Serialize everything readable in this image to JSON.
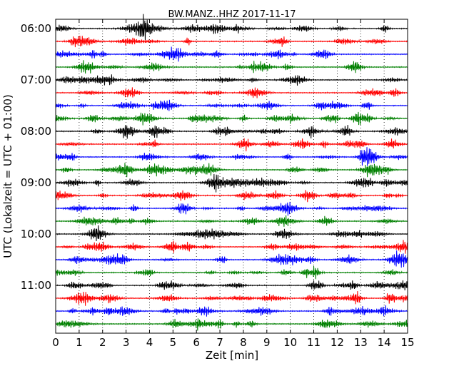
{
  "chart_data": {
    "type": "line",
    "title": "BW.MANZ..HHZ 2017-11-17",
    "xlabel": "Zeit  [min]",
    "ylabel": "UTC (Lokalzeit = UTC + 01:00)",
    "xlim": [
      0,
      15
    ],
    "x_ticks": [
      "0",
      "1",
      "2",
      "3",
      "4",
      "5",
      "6",
      "7",
      "8",
      "9",
      "10",
      "11",
      "12",
      "13",
      "14",
      "15"
    ],
    "y_ticks": [
      "06:00",
      "07:00",
      "08:00",
      "09:00",
      "10:00",
      "11:00"
    ],
    "grid": "vertical dotted at each minute",
    "trace_colors": [
      "#000000",
      "#ff0000",
      "#0000ff",
      "#008000"
    ],
    "trace_start_times": [
      "06:00",
      "06:15",
      "06:30",
      "06:45",
      "07:00",
      "07:15",
      "07:30",
      "07:45",
      "08:00",
      "08:15",
      "08:30",
      "08:45",
      "09:00",
      "09:15",
      "09:30",
      "09:45",
      "10:00",
      "10:15",
      "10:30",
      "10:45",
      "11:00",
      "11:15",
      "11:30",
      "11:45"
    ],
    "trace_minutes_each": 15
  }
}
